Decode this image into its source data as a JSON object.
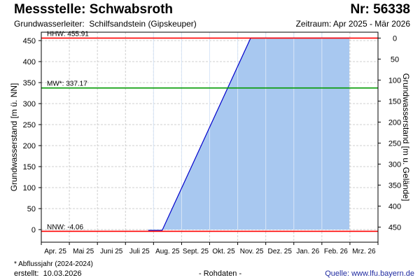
{
  "header": {
    "title": "Messstelle: Schwabsroth",
    "number": "Nr: 56338",
    "aquifer_label": "Grundwasserleiter:",
    "aquifer_value": "Schilfsandstein (Gipskeuper)",
    "period": "Zeitraum: Apr 2025 - Mär 2026"
  },
  "footer": {
    "footnote": "* Abflussjahr (2024-2024)",
    "created_label": "erstellt:",
    "created_date": "10.03.2026",
    "rawdata": "- Rohdaten -",
    "source": "Quelle: www.lfu.bayern.de"
  },
  "colors": {
    "hhw": "#ff0000",
    "mw": "#009900",
    "nnw": "#ff0000",
    "area_fill": "#a8c8f0",
    "area_line": "#0000cc",
    "grid": "#cfcfcf"
  },
  "chart_data": {
    "type": "area",
    "ylabel": "Grundwasserstand [m ü. NN]",
    "ylabel_right": "Grundwasserstand [m u. Gelände]",
    "ylim": [
      -30,
      470
    ],
    "yticks": [
      0,
      50,
      100,
      150,
      200,
      250,
      300,
      350,
      400,
      450
    ],
    "yticks_right": [
      {
        "at": 456,
        "label": "0"
      },
      {
        "at": 406,
        "label": "50"
      },
      {
        "at": 356,
        "label": "100"
      },
      {
        "at": 306,
        "label": "150"
      },
      {
        "at": 256,
        "label": "200"
      },
      {
        "at": 206,
        "label": "250"
      },
      {
        "at": 156,
        "label": "300"
      },
      {
        "at": 106,
        "label": "350"
      },
      {
        "at": 56,
        "label": "400"
      },
      {
        "at": 6,
        "label": "450"
      }
    ],
    "xticks": [
      "Apr. 25",
      "Mai 25",
      "Juni 25",
      "Juli 25",
      "Aug. 25",
      "Sept. 25",
      "Okt. 25",
      "Nov. 25",
      "Dez. 25",
      "Jan. 26",
      "Feb. 26",
      "Mrz. 26"
    ],
    "reference_lines": [
      {
        "label": "HHW: 455.91",
        "value": 455.91,
        "color": "#ff0000"
      },
      {
        "label": "MW*: 337.17",
        "value": 337.17,
        "color": "#009900"
      },
      {
        "label": "NNW: -4.06",
        "value": -4.06,
        "color": "#ff0000"
      }
    ],
    "series": [
      {
        "points": [
          {
            "x": "2025-07-26",
            "y": -2
          },
          {
            "x": "2025-08-10",
            "y": -2
          },
          {
            "x": "2025-11-14",
            "y": 456
          },
          {
            "x": "2026-03-01",
            "y": 456
          }
        ]
      }
    ]
  }
}
